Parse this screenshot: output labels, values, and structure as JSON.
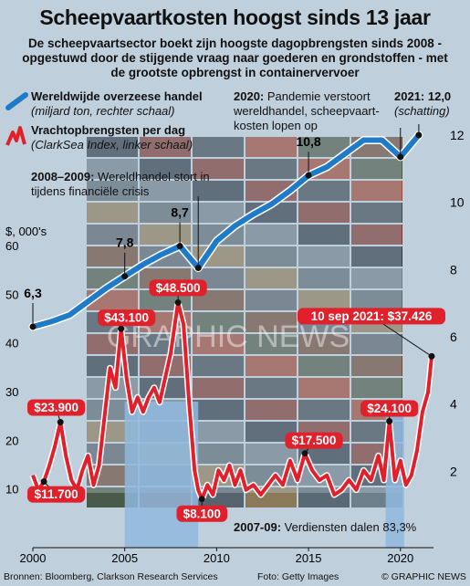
{
  "header": {
    "title": "Scheepvaartkosten hoogst sinds 13 jaar",
    "subtitle": "De scheepvaartsector boekt zijn hoogste dagopbrengsten sinds 2008 - opgestuwd door de stijgende vraag naar goederen en grondstoffen - met de grootste opbrengst in containervervoer"
  },
  "legend": {
    "trade_title": "Wereldwijde overzeese handel",
    "trade_sub": "(miljard ton, rechter schaal)",
    "freight_title": "Vrachtopbrengsten per dag",
    "freight_sub": "(ClarkSea Index, linker schaal)"
  },
  "notes": {
    "pandemic_bold": "2020:",
    "pandemic_text": "Pandemie verstoort wereldhandel, scheepvaart-kosten lopen op",
    "estimate_bold": "2021: 12,0",
    "estimate_text": "(schatting)",
    "crisis_bold": "2008–2009:",
    "crisis_text": "Wereldhandel stort in tijdens financiële crisis",
    "earnings_bold": "2007-09:",
    "earnings_text": "Verdiensten dalen 83,3%"
  },
  "footer": {
    "sources": "Bronnen: Bloomberg, Clarkson Research Services",
    "photo": "Foto: Getty Images",
    "credit": "© GRAPHIC NEWS"
  },
  "watermark": "GRAPHIC NEWS",
  "colors": {
    "trade_line": "#1f7bc8",
    "freight_line": "#e0202a",
    "background": "#bfcfdc",
    "recession_band": "#8fb8de"
  },
  "chart_data": {
    "type": "line",
    "x_axis": {
      "min": 2000,
      "max": 2021.8,
      "ticks": [
        2000,
        2005,
        2010,
        2015,
        2020
      ]
    },
    "y_left": {
      "unit_label": "$, 000's",
      "min": 0,
      "max": 60,
      "ticks": [
        10,
        20,
        30,
        40,
        50,
        60
      ]
    },
    "y_right": {
      "min": 0,
      "max": 13,
      "ticks": [
        2,
        4,
        6,
        8,
        10,
        12
      ]
    },
    "shaded_periods": [
      [
        2005,
        2009
      ],
      [
        2019.2,
        2020.2
      ]
    ],
    "series": [
      {
        "name": "Wereldwijde overzeese handel",
        "axis": "right",
        "points": [
          [
            2000,
            6.3
          ],
          [
            2001,
            6.45
          ],
          [
            2002,
            6.65
          ],
          [
            2003,
            7.05
          ],
          [
            2004,
            7.45
          ],
          [
            2005,
            7.8
          ],
          [
            2006,
            8.15
          ],
          [
            2007,
            8.45
          ],
          [
            2008,
            8.7
          ],
          [
            2009,
            8.05
          ],
          [
            2010,
            8.85
          ],
          [
            2011,
            9.3
          ],
          [
            2012,
            9.65
          ],
          [
            2013,
            9.95
          ],
          [
            2014,
            10.35
          ],
          [
            2015,
            10.8
          ],
          [
            2016,
            11.05
          ],
          [
            2017,
            11.45
          ],
          [
            2018,
            11.85
          ],
          [
            2019,
            11.85
          ],
          [
            2020,
            11.35
          ],
          [
            2021,
            12.0
          ]
        ],
        "labels": [
          {
            "year": 2000,
            "value": 6.3,
            "text": "6,3"
          },
          {
            "year": 2005,
            "value": 7.8,
            "text": "7,8"
          },
          {
            "year": 2008,
            "value": 8.7,
            "text": "8,7"
          },
          {
            "year": 2015,
            "value": 10.8,
            "text": "10,8"
          }
        ]
      },
      {
        "name": "Vrachtopbrengsten per dag",
        "axis": "left",
        "points": [
          [
            2000,
            13
          ],
          [
            2000.3,
            10
          ],
          [
            2000.6,
            11.7
          ],
          [
            2000.9,
            15
          ],
          [
            2001.2,
            19
          ],
          [
            2001.5,
            23.9
          ],
          [
            2001.8,
            17
          ],
          [
            2002.1,
            12
          ],
          [
            2002.4,
            10
          ],
          [
            2002.7,
            14
          ],
          [
            2003.0,
            17
          ],
          [
            2003.3,
            11
          ],
          [
            2003.6,
            15
          ],
          [
            2003.9,
            25
          ],
          [
            2004.2,
            35
          ],
          [
            2004.5,
            31
          ],
          [
            2004.8,
            43.1
          ],
          [
            2005.1,
            33
          ],
          [
            2005.4,
            26
          ],
          [
            2005.7,
            29
          ],
          [
            2006.0,
            26
          ],
          [
            2006.3,
            29
          ],
          [
            2006.6,
            31
          ],
          [
            2006.9,
            28
          ],
          [
            2007.2,
            33
          ],
          [
            2007.5,
            38
          ],
          [
            2007.9,
            48.5
          ],
          [
            2008.2,
            44
          ],
          [
            2008.5,
            28
          ],
          [
            2008.8,
            14
          ],
          [
            2009.0,
            10
          ],
          [
            2009.2,
            8.1
          ],
          [
            2009.5,
            11
          ],
          [
            2009.8,
            9
          ],
          [
            2010.1,
            14
          ],
          [
            2010.4,
            12
          ],
          [
            2010.7,
            15
          ],
          [
            2011.0,
            11
          ],
          [
            2011.3,
            14
          ],
          [
            2011.6,
            10
          ],
          [
            2012.0,
            11
          ],
          [
            2012.4,
            9
          ],
          [
            2012.8,
            11
          ],
          [
            2013.2,
            13
          ],
          [
            2013.6,
            11
          ],
          [
            2014.0,
            16
          ],
          [
            2014.4,
            12
          ],
          [
            2014.8,
            17.5
          ],
          [
            2015.2,
            14
          ],
          [
            2015.6,
            12
          ],
          [
            2016.0,
            13
          ],
          [
            2016.4,
            9
          ],
          [
            2016.8,
            10
          ],
          [
            2017.2,
            12
          ],
          [
            2017.6,
            10
          ],
          [
            2018.0,
            14
          ],
          [
            2018.4,
            12
          ],
          [
            2018.8,
            17
          ],
          [
            2019.1,
            12
          ],
          [
            2019.4,
            24.1
          ],
          [
            2019.7,
            12
          ],
          [
            2020.0,
            16
          ],
          [
            2020.3,
            11
          ],
          [
            2020.6,
            13
          ],
          [
            2020.9,
            18
          ],
          [
            2021.2,
            26
          ],
          [
            2021.5,
            30
          ],
          [
            2021.7,
            37.426
          ]
        ],
        "labels": [
          {
            "year": 2001.5,
            "value": 23.9,
            "text": "$23.900"
          },
          {
            "year": 2004.8,
            "value": 43.1,
            "text": "$43.100"
          },
          {
            "year": 2007.9,
            "value": 48.5,
            "text": "$48.500"
          },
          {
            "year": 2000.6,
            "value": 11.7,
            "text": "$11.700"
          },
          {
            "year": 2009.2,
            "value": 8.1,
            "text": "$8.100"
          },
          {
            "year": 2014.8,
            "value": 17.5,
            "text": "$17.500"
          },
          {
            "year": 2019.4,
            "value": 24.1,
            "text": "$24.100"
          },
          {
            "year": 2021.7,
            "value": 37.426,
            "text": "10 sep 2021: $37.426"
          }
        ]
      }
    ]
  }
}
